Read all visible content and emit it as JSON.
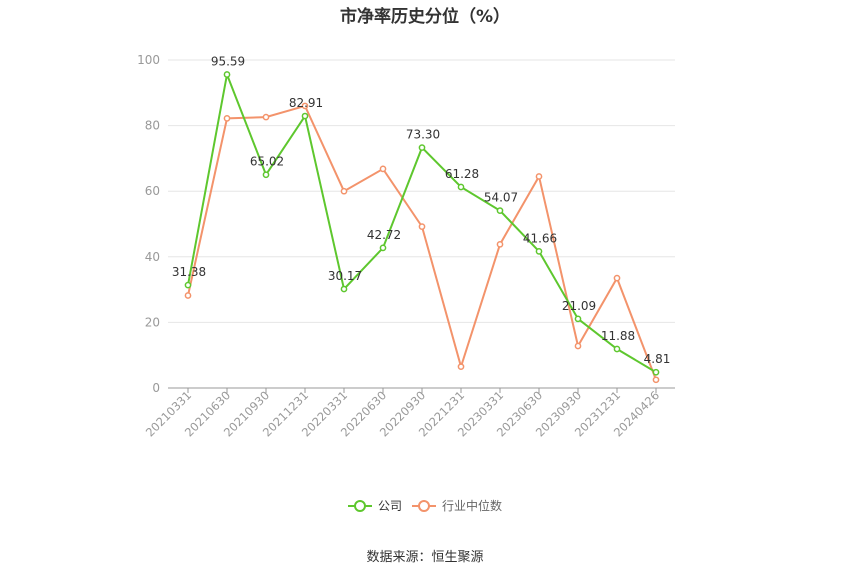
{
  "chart_data": {
    "type": "line",
    "title": "市净率历史分位（%）",
    "categories": [
      "20210331",
      "20210630",
      "20210930",
      "20211231",
      "20220331",
      "20220630",
      "20220930",
      "20221231",
      "20230331",
      "20230630",
      "20230930",
      "20231231",
      "20240426"
    ],
    "series": [
      {
        "name": "公司",
        "color": "#5ec72e",
        "values": [
          31.38,
          95.59,
          65.02,
          82.91,
          30.17,
          42.72,
          73.3,
          61.28,
          54.07,
          41.66,
          21.09,
          11.88,
          4.81
        ],
        "labels": [
          "31.38",
          "95.59",
          "65.02",
          "82.91",
          "30.17",
          "42.72",
          "73.30",
          "61.28",
          "54.07",
          "41.66",
          "21.09",
          "11.88",
          "4.81"
        ]
      },
      {
        "name": "行业中位数",
        "color": "#f3936b",
        "values": [
          28.2,
          82.2,
          82.6,
          86.0,
          60.0,
          66.8,
          49.2,
          6.5,
          43.8,
          64.5,
          12.8,
          33.5,
          2.5
        ]
      }
    ],
    "ylim": [
      0,
      100
    ],
    "yticks": [
      0,
      20,
      40,
      60,
      80,
      100
    ],
    "legend": "bottom",
    "grid": true
  },
  "source": "数据来源：恒生聚源"
}
